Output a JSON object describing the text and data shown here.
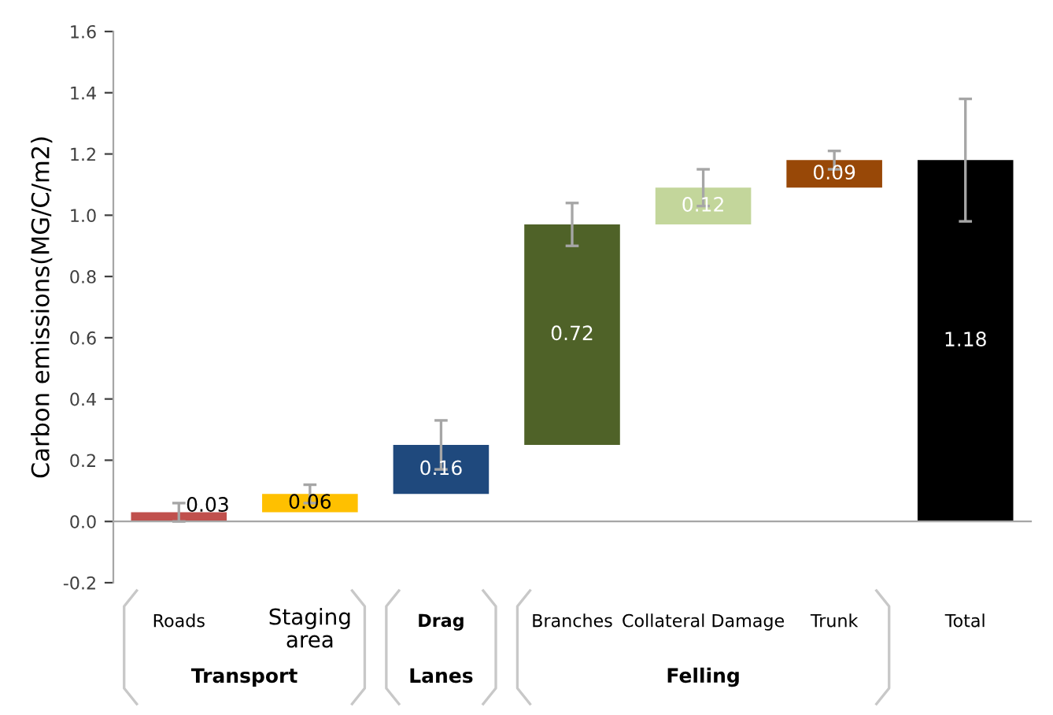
{
  "chart_data": {
    "type": "bar",
    "ylabel": "Carbon emissions(MG/C/m2)",
    "categories": [
      "Roads",
      "Staging\narea",
      "Drag",
      "Branches",
      "Collateral Damage",
      "Trunk",
      "Total"
    ],
    "values": [
      0.03,
      0.06,
      0.16,
      0.72,
      0.12,
      0.09,
      1.18
    ],
    "base": [
      0,
      0.03,
      0.09,
      0.25,
      0.97,
      1.09,
      0
    ],
    "colors": [
      "#c0504d",
      "#ffc000",
      "#1f497d",
      "#4f6228",
      "#c3d69b",
      "#984807",
      "#000000"
    ],
    "errors": [
      0.03,
      0.03,
      0.08,
      0.07,
      0.06,
      0.03,
      0.2
    ],
    "data_labels": true,
    "annotations": [
      "Transport",
      "Lanes",
      "Felling"
    ],
    "ylim": [
      -0.2,
      1.6
    ],
    "yticks": [
      {
        "value": -0.2,
        "label": "-0.2"
      },
      {
        "value": 0,
        "label": "0.0"
      },
      {
        "value": 0.2,
        "label": "0.2"
      },
      {
        "value": 0.4,
        "label": "0.4"
      },
      {
        "value": 0.6,
        "label": "0.6"
      },
      {
        "value": 0.8,
        "label": "0.8"
      },
      {
        "value": 1.0,
        "label": "1.0"
      },
      {
        "value": 1.2,
        "label": "1.2"
      },
      {
        "value": 1.4,
        "label": "1.4"
      },
      {
        "value": 1.6,
        "label": "1.6"
      }
    ],
    "legend": false
  }
}
